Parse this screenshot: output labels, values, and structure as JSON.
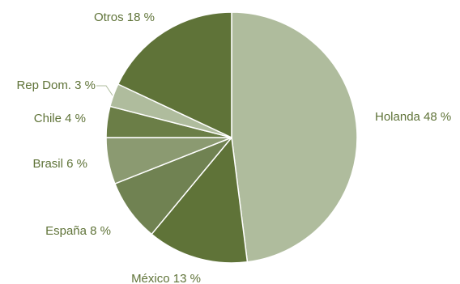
{
  "chart_data": {
    "type": "pie",
    "title": "",
    "legend": "none",
    "slices": [
      {
        "name": "Holanda",
        "value": 48,
        "label": "Holanda 48 %",
        "color": "#afbc9d"
      },
      {
        "name": "México",
        "value": 13,
        "label": "México 13 %",
        "color": "#5f7338"
      },
      {
        "name": "España",
        "value": 8,
        "label": "España 8 %",
        "color": "#708252"
      },
      {
        "name": "Brasil",
        "value": 6,
        "label": "Brasil 6 %",
        "color": "#8b9a71"
      },
      {
        "name": "Chile",
        "value": 4,
        "label": "Chile 4 %",
        "color": "#6b7e47"
      },
      {
        "name": "Rep Dom.",
        "value": 3,
        "label": "Rep Dom. 3 %",
        "color": "#afbc9d"
      },
      {
        "name": "Otros",
        "value": 18,
        "label": "Otros 18 %",
        "color": "#5f7338"
      }
    ],
    "label_color": "#5f7338",
    "leader_line_color": "#afbc9d",
    "slice_border_color": "#ffffff"
  }
}
